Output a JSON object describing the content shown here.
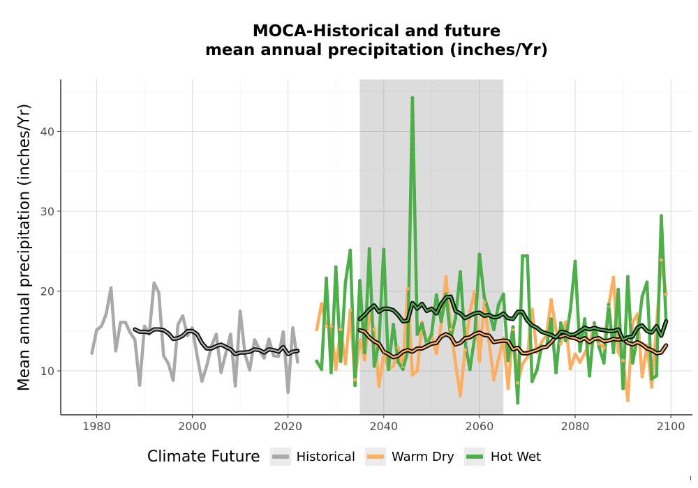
{
  "chart_data": {
    "type": "line",
    "title": "MOCA-Historical and future\nmean annual precipitation (inches/Yr)",
    "title_lines": [
      "MOCA-Historical and future",
      "mean annual precipitation (inches/Yr)"
    ],
    "xlabel": "",
    "ylabel": "Mean annual precipitation (inches/Yr)",
    "xlim": [
      1972.5,
      2104.5
    ],
    "ylim": [
      4.5,
      46.5
    ],
    "x_ticks": [
      1980,
      2000,
      2020,
      2040,
      2060,
      2080,
      2100
    ],
    "y_ticks": [
      10,
      20,
      30,
      40
    ],
    "grid": true,
    "shaded_period": [
      2035,
      2065
    ],
    "legend": {
      "title": "Climate Future",
      "position": "bottom"
    },
    "series": [
      {
        "name": "Historical",
        "color": "#A9A9A9",
        "x": [
          1979,
          1980,
          1981,
          1982,
          1983,
          1984,
          1985,
          1986,
          1987,
          1988,
          1989,
          1990,
          1991,
          1992,
          1993,
          1994,
          1995,
          1996,
          1997,
          1998,
          1999,
          2000,
          2001,
          2002,
          2003,
          2004,
          2005,
          2006,
          2007,
          2008,
          2009,
          2010,
          2011,
          2012,
          2013,
          2014,
          2015,
          2016,
          2017,
          2018,
          2019,
          2020,
          2021,
          2022
        ],
        "values": [
          12.2,
          15.1,
          15.6,
          17.1,
          20.4,
          12.5,
          16.1,
          16.1,
          14.8,
          13.9,
          8.2,
          15.6,
          14.6,
          21.0,
          19.8,
          11.9,
          10.9,
          8.8,
          15.8,
          16.9,
          14.4,
          15.4,
          11.9,
          8.7,
          10.6,
          13.1,
          14.6,
          9.8,
          12.2,
          14.6,
          8.1,
          17.5,
          12.1,
          10.1,
          13.9,
          12.7,
          11.6,
          14.0,
          11.9,
          11.8,
          14.9,
          7.3,
          15.4,
          11.1
        ]
      },
      {
        "name": "Warm Dry",
        "color": "#FDAE61",
        "x": [
          2026,
          2027,
          2028,
          2029,
          2030,
          2031,
          2032,
          2033,
          2034,
          2035,
          2036,
          2037,
          2038,
          2039,
          2040,
          2041,
          2042,
          2043,
          2044,
          2045,
          2046,
          2047,
          2048,
          2049,
          2050,
          2051,
          2052,
          2053,
          2054,
          2055,
          2056,
          2057,
          2058,
          2059,
          2060,
          2061,
          2062,
          2063,
          2064,
          2065,
          2066,
          2067,
          2068,
          2069,
          2070,
          2071,
          2072,
          2073,
          2074,
          2075,
          2076,
          2077,
          2078,
          2079,
          2080,
          2081,
          2082,
          2083,
          2084,
          2085,
          2086,
          2087,
          2088,
          2089,
          2090,
          2091,
          2092,
          2093,
          2094,
          2095,
          2096,
          2097,
          2098,
          2099
        ],
        "values": [
          15.2,
          18.4,
          15.6,
          15.6,
          10.2,
          15.2,
          10.9,
          17.6,
          8.9,
          13.9,
          11.4,
          17.2,
          15.2,
          8.1,
          12.2,
          10.2,
          10.6,
          12.9,
          10.4,
          20.3,
          9.5,
          10.0,
          16.1,
          13.4,
          14.6,
          12.2,
          15.8,
          21.8,
          15.2,
          11.0,
          6.9,
          12.6,
          17.4,
          19.9,
          11.2,
          18.6,
          13.7,
          8.9,
          11.5,
          14.1,
          7.8,
          15.2,
          8.5,
          10.9,
          11.7,
          17.7,
          12.3,
          13.6,
          14.5,
          18.9,
          15.1,
          13.4,
          16.1,
          10.3,
          12.1,
          11.1,
          12.2,
          13.5,
          15.8,
          13.4,
          12.9,
          18.2,
          21.7,
          12.4,
          11.3,
          6.3,
          16.1,
          17.1,
          9.3,
          13.2,
          8.0,
          15.6,
          23.9,
          19.6
        ]
      },
      {
        "name": "Hot Wet",
        "color": "#4DAF4A",
        "x": [
          2026,
          2027,
          2028,
          2029,
          2030,
          2031,
          2032,
          2033,
          2034,
          2035,
          2036,
          2037,
          2038,
          2039,
          2040,
          2041,
          2042,
          2043,
          2044,
          2045,
          2046,
          2047,
          2048,
          2049,
          2050,
          2051,
          2052,
          2053,
          2054,
          2055,
          2056,
          2057,
          2058,
          2059,
          2060,
          2061,
          2062,
          2063,
          2064,
          2065,
          2066,
          2067,
          2068,
          2069,
          2070,
          2071,
          2072,
          2073,
          2074,
          2075,
          2076,
          2077,
          2078,
          2079,
          2080,
          2081,
          2082,
          2083,
          2084,
          2085,
          2086,
          2087,
          2088,
          2089,
          2090,
          2091,
          2092,
          2093,
          2094,
          2095,
          2096,
          2097,
          2098,
          2099
        ],
        "values": [
          11.2,
          10.2,
          21.6,
          9.8,
          23.0,
          11.2,
          21.1,
          25.1,
          8.2,
          21.3,
          12.3,
          25.3,
          10.6,
          13.5,
          25.2,
          10.2,
          15.8,
          11.1,
          10.2,
          12.4,
          44.2,
          14.6,
          15.9,
          13.3,
          14.6,
          19.5,
          16.2,
          19.6,
          14.1,
          16.6,
          22.4,
          13.6,
          10.2,
          14.2,
          24.6,
          19.2,
          17.4,
          15.2,
          18.3,
          19.6,
          11.3,
          15.5,
          6.0,
          24.4,
          24.4,
          8.7,
          10.1,
          13.1,
          13.0,
          16.5,
          9.8,
          16.0,
          13.8,
          17.6,
          23.7,
          12.5,
          16.5,
          9.4,
          16.0,
          13.0,
          11.0,
          18.3,
          12.3,
          20.2,
          7.8,
          21.8,
          11.0,
          14.2,
          19.3,
          21.1,
          9.0,
          9.4,
          29.4,
          16.2
        ]
      }
    ],
    "smoothed": [
      {
        "name": "Historical",
        "x": [
          1988,
          1989,
          1990,
          1991,
          1992,
          1993,
          1994,
          1995,
          1996,
          1997,
          1998,
          1999,
          2000,
          2001,
          2002,
          2003,
          2004,
          2005,
          2006,
          2007,
          2008,
          2009,
          2010,
          2011,
          2012,
          2013,
          2014,
          2015,
          2016,
          2017,
          2018,
          2019,
          2020,
          2021,
          2022
        ],
        "values": [
          15.2,
          14.9,
          14.9,
          14.8,
          15.2,
          15.2,
          15.1,
          14.7,
          14.0,
          14.1,
          14.4,
          15.0,
          15.0,
          14.6,
          13.5,
          12.8,
          12.8,
          13.1,
          13.3,
          13.0,
          12.7,
          12.1,
          12.3,
          12.3,
          12.4,
          12.7,
          12.6,
          12.3,
          12.7,
          12.6,
          12.4,
          13.0,
          12.1,
          12.4,
          12.5
        ]
      },
      {
        "name": "Warm Dry",
        "x": [
          2035,
          2036,
          2037,
          2038,
          2039,
          2040,
          2041,
          2042,
          2043,
          2044,
          2045,
          2046,
          2047,
          2048,
          2049,
          2050,
          2051,
          2052,
          2053,
          2054,
          2055,
          2056,
          2057,
          2058,
          2059,
          2060,
          2061,
          2062,
          2063,
          2064,
          2065,
          2066,
          2067,
          2068,
          2069,
          2070,
          2071,
          2072,
          2073,
          2074,
          2075,
          2076,
          2077,
          2078,
          2079,
          2080,
          2081,
          2082,
          2083,
          2084,
          2085,
          2086,
          2087,
          2088,
          2089,
          2090,
          2091,
          2092,
          2093,
          2094,
          2095,
          2096,
          2097,
          2098,
          2099
        ],
        "values": [
          15.1,
          14.9,
          14.2,
          13.7,
          13.4,
          12.4,
          12.1,
          11.7,
          11.9,
          12.4,
          12.6,
          12.4,
          12.8,
          12.8,
          13.1,
          13.4,
          13.5,
          14.3,
          14.6,
          14.3,
          13.3,
          13.5,
          14.1,
          14.2,
          14.6,
          14.8,
          14.5,
          14.4,
          13.6,
          13.7,
          13.8,
          13.7,
          12.7,
          12.9,
          12.2,
          12.2,
          12.4,
          12.6,
          12.9,
          13.0,
          13.6,
          14.3,
          14.3,
          14.5,
          14.2,
          14.1,
          13.8,
          14.1,
          13.6,
          14.0,
          14.1,
          13.7,
          13.8,
          14.0,
          13.9,
          14.1,
          13.5,
          13.3,
          13.6,
          13.3,
          12.8,
          12.6,
          12.2,
          12.3,
          13.2
        ]
      },
      {
        "name": "Hot Wet",
        "x": [
          2035,
          2036,
          2037,
          2038,
          2039,
          2040,
          2041,
          2042,
          2043,
          2044,
          2045,
          2046,
          2047,
          2048,
          2049,
          2050,
          2051,
          2052,
          2053,
          2054,
          2055,
          2056,
          2057,
          2058,
          2059,
          2060,
          2061,
          2062,
          2063,
          2064,
          2065,
          2066,
          2067,
          2068,
          2069,
          2070,
          2071,
          2072,
          2073,
          2074,
          2075,
          2076,
          2077,
          2078,
          2079,
          2080,
          2081,
          2082,
          2083,
          2084,
          2085,
          2086,
          2087,
          2088,
          2089,
          2090,
          2091,
          2092,
          2093,
          2094,
          2095,
          2096,
          2097,
          2098,
          2099
        ],
        "values": [
          16.5,
          17.0,
          17.7,
          18.2,
          17.4,
          17.8,
          17.8,
          17.6,
          17.0,
          16.2,
          16.3,
          18.5,
          17.8,
          18.4,
          17.5,
          17.8,
          17.2,
          18.4,
          19.2,
          19.3,
          17.5,
          17.2,
          16.6,
          16.9,
          17.2,
          17.3,
          16.9,
          17.0,
          16.7,
          16.8,
          17.2,
          16.6,
          16.5,
          17.4,
          17.4,
          16.3,
          15.7,
          15.4,
          14.9,
          14.7,
          14.5,
          14.2,
          14.9,
          14.8,
          14.5,
          14.6,
          15.0,
          15.4,
          15.2,
          15.4,
          15.2,
          15.1,
          15.0,
          15.0,
          15.2,
          13.9,
          14.2,
          14.3,
          15.4,
          15.7,
          15.0,
          14.8,
          15.6,
          14.4,
          16.2
        ]
      }
    ]
  }
}
